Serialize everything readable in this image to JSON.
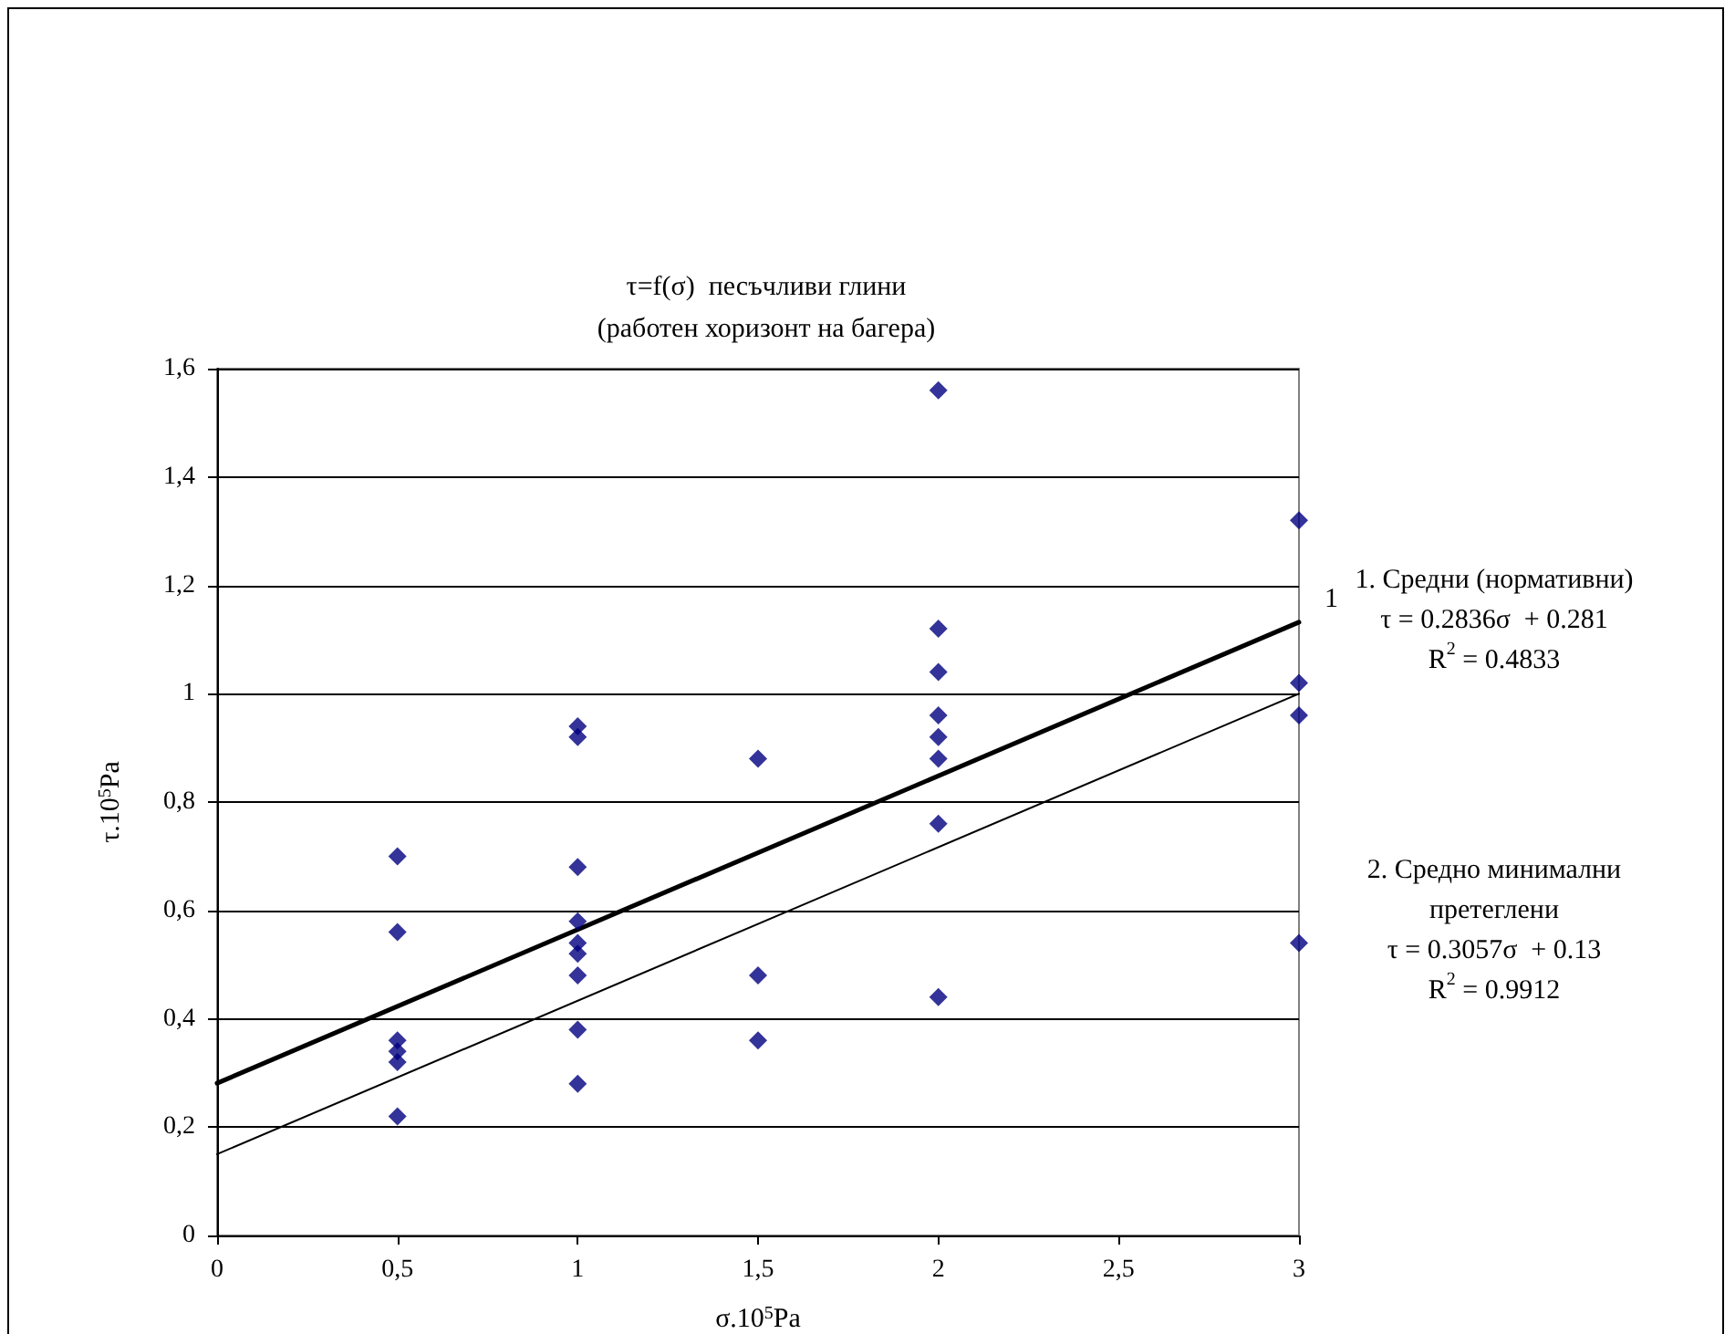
{
  "chart_data": {
    "type": "scatter",
    "title": "τ=f(σ)  песъчливи глини",
    "subtitle": "(работен хоризонт на багера)",
    "xlabel": "σ.10$^{5}$Pa",
    "ylabel": "τ.10$^{5}$Pa",
    "xlim": [
      0,
      3
    ],
    "xticks": [
      0,
      {
        "value": 0.5,
        "label": "0,5"
      },
      1,
      {
        "value": 1.5,
        "label": "1,5"
      },
      2,
      {
        "value": 2.5,
        "label": "2,5"
      },
      3
    ],
    "ylim": [
      0,
      1.6
    ],
    "yticks": [
      0,
      {
        "value": 0.2,
        "label": "0,2"
      },
      {
        "value": 0.4,
        "label": "0,4"
      },
      {
        "value": 0.6,
        "label": "0,6"
      },
      {
        "value": 0.8,
        "label": "0,8"
      },
      1,
      {
        "value": 1.2,
        "label": "1,2"
      },
      {
        "value": 1.4,
        "label": "1,4"
      },
      {
        "value": 1.6,
        "label": "1,6"
      }
    ],
    "grid": "y",
    "marker": "diamond",
    "series": [
      {
        "color": "#000080",
        "x": [
          0.5,
          0.5,
          0.5,
          0.5,
          0.5,
          0.5,
          1,
          1,
          1,
          1,
          1,
          1,
          1,
          1,
          1,
          1.5,
          1.5,
          1.5,
          2,
          2,
          2,
          2,
          2,
          2,
          2,
          2,
          3,
          3,
          3,
          3
        ],
        "values": [
          0.7,
          0.56,
          0.36,
          0.34,
          0.32,
          0.22,
          0.94,
          0.92,
          0.68,
          0.58,
          0.54,
          0.52,
          0.48,
          0.38,
          0.28,
          0.88,
          0.48,
          0.36,
          1.56,
          1.12,
          1.04,
          0.96,
          0.92,
          0.88,
          0.76,
          0.44,
          1.32,
          1.02,
          0.96,
          0.54
        ]
      },
      {
        "type": "line",
        "color": "#000000",
        "x": [
          0,
          3
        ],
        "values": [
          0.281,
          1.132
        ],
        "marker": "none",
        "line_style": "solid"
      },
      {
        "type": "line",
        "color": "#000000",
        "x": [
          0,
          3
        ],
        "values": [
          0.15,
          1.0
        ],
        "marker": "none",
        "line_style": "solid"
      }
    ],
    "annotations": [
      "1. Средни (нормативни)\nτ = 0.2836σ  + 0.281\nR$^{2}$ = 0.4833",
      "2. Средно минимални\nпретеглени\nτ = 0.3057σ  + 0.13\nR$^{2}$ = 0.9912",
      {
        "text": "1",
        "x": 3,
        "y": 1.132
      }
    ]
  }
}
